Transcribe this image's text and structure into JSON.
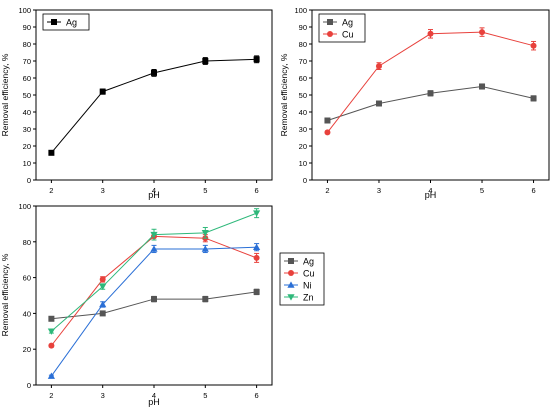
{
  "chart_data": [
    {
      "type": "line",
      "xlabel": "pH",
      "ylabel": "Removal efficiency, %",
      "xlim": [
        1.7,
        6.3
      ],
      "ylim": [
        0,
        100
      ],
      "xticks": [
        2,
        3,
        4,
        5,
        6
      ],
      "yticks": [
        0,
        10,
        20,
        30,
        40,
        50,
        60,
        70,
        80,
        90,
        100
      ],
      "legend_position": "top-left",
      "x": [
        2,
        3,
        4,
        5,
        6
      ],
      "series": [
        {
          "name": "Ag",
          "values": [
            16,
            52,
            63,
            70,
            71
          ],
          "errors": [
            0.8,
            1.5,
            2,
            2,
            2
          ],
          "color": "#000000",
          "marker": "square"
        }
      ]
    },
    {
      "type": "line",
      "xlabel": "pH",
      "ylabel": "Removal efficiency, %",
      "xlim": [
        1.7,
        6.3
      ],
      "ylim": [
        0,
        100
      ],
      "xticks": [
        2,
        3,
        4,
        5,
        6
      ],
      "yticks": [
        0,
        10,
        20,
        30,
        40,
        50,
        60,
        70,
        80,
        90,
        100
      ],
      "legend_position": "top-left",
      "x": [
        2,
        3,
        4,
        5,
        6
      ],
      "series": [
        {
          "name": "Ag",
          "values": [
            35,
            45,
            51,
            55,
            48
          ],
          "errors": [
            1,
            1,
            1.5,
            1.5,
            1.5
          ],
          "color": "#555555",
          "marker": "square"
        },
        {
          "name": "Cu",
          "values": [
            28,
            67,
            86,
            87,
            79
          ],
          "errors": [
            0.8,
            2,
            2.5,
            2.5,
            2.5
          ],
          "color": "#e8413c",
          "marker": "circle"
        }
      ]
    },
    {
      "type": "line",
      "xlabel": "pH",
      "ylabel": "Removal efficiency, %",
      "xlim": [
        1.7,
        6.3
      ],
      "ylim": [
        0,
        100
      ],
      "xticks": [
        2,
        3,
        4,
        5,
        6
      ],
      "yticks": [
        0,
        20,
        40,
        60,
        80,
        100
      ],
      "legend_position": "right",
      "x": [
        2,
        3,
        4,
        5,
        6
      ],
      "series": [
        {
          "name": "Ag",
          "values": [
            37,
            40,
            48,
            48,
            52
          ],
          "errors": [
            1,
            1,
            1.5,
            1.5,
            1.5
          ],
          "color": "#555555",
          "marker": "square"
        },
        {
          "name": "Cu",
          "values": [
            22,
            59,
            83,
            82,
            71
          ],
          "errors": [
            0.8,
            1.5,
            2,
            2,
            2.5
          ],
          "color": "#e8413c",
          "marker": "circle"
        },
        {
          "name": "Ni",
          "values": [
            5,
            45,
            76,
            76,
            77
          ],
          "errors": [
            0.5,
            1.5,
            2,
            2,
            2
          ],
          "color": "#2a6fd6",
          "marker": "triangle-up"
        },
        {
          "name": "Zn",
          "values": [
            30,
            55,
            84,
            85,
            96
          ],
          "errors": [
            1,
            1.5,
            3,
            3,
            2.5
          ],
          "color": "#2eb87a",
          "marker": "triangle-down"
        }
      ]
    }
  ]
}
